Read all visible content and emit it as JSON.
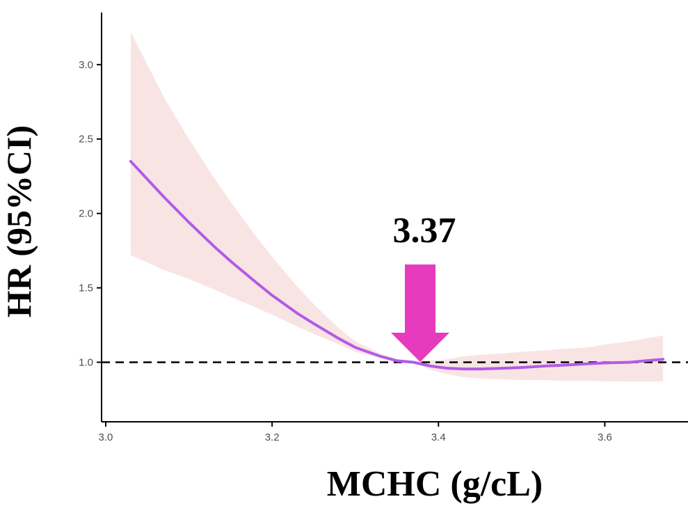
{
  "chart_data": {
    "type": "line",
    "title": "",
    "xlabel": "MCHC (g/cL)",
    "ylabel": "HR (95%CI)",
    "xlim": [
      2.995,
      3.7
    ],
    "ylim": [
      0.6,
      3.35
    ],
    "x_ticks": [
      3.0,
      3.2,
      3.4,
      3.6
    ],
    "x_tick_labels": [
      "3.0",
      "3.2",
      "3.4",
      "3.6"
    ],
    "y_ticks": [
      1.0,
      1.5,
      2.0,
      2.5,
      3.0
    ],
    "y_tick_labels": [
      "1.0",
      "1.5",
      "2.0",
      "2.5",
      "3.0"
    ],
    "grid": false,
    "reference_line": {
      "y": 1.0,
      "style": "dashed"
    },
    "annotation": {
      "text": "3.37",
      "x": 3.37
    },
    "series": [
      {
        "x": [
          3.03,
          3.05,
          3.07,
          3.1,
          3.13,
          3.15,
          3.18,
          3.2,
          3.23,
          3.25,
          3.28,
          3.3,
          3.33,
          3.35,
          3.37,
          3.39,
          3.41,
          3.43,
          3.45,
          3.48,
          3.5,
          3.53,
          3.55,
          3.58,
          3.6,
          3.63,
          3.65,
          3.67
        ],
        "y": [
          2.35,
          2.23,
          2.11,
          1.94,
          1.78,
          1.68,
          1.54,
          1.45,
          1.33,
          1.26,
          1.16,
          1.1,
          1.04,
          1.01,
          1.0,
          0.975,
          0.96,
          0.955,
          0.955,
          0.96,
          0.965,
          0.975,
          0.98,
          0.99,
          0.995,
          1.0,
          1.01,
          1.02
        ],
        "lower": [
          1.72,
          1.67,
          1.62,
          1.56,
          1.49,
          1.44,
          1.37,
          1.32,
          1.24,
          1.19,
          1.12,
          1.07,
          1.03,
          1.01,
          1.0,
          0.95,
          0.92,
          0.9,
          0.89,
          0.885,
          0.88,
          0.88,
          0.875,
          0.875,
          0.872,
          0.87,
          0.87,
          0.87
        ],
        "upper": [
          3.22,
          3.0,
          2.78,
          2.5,
          2.24,
          2.08,
          1.85,
          1.71,
          1.51,
          1.39,
          1.23,
          1.14,
          1.06,
          1.02,
          1.0,
          1.01,
          1.02,
          1.04,
          1.05,
          1.06,
          1.07,
          1.08,
          1.09,
          1.1,
          1.12,
          1.14,
          1.16,
          1.18
        ]
      }
    ],
    "colors": {
      "line": "#b35be6",
      "band": "#f9e4e4",
      "arrow": "#e63bbd",
      "reference": "#000000",
      "axis": "#000000",
      "tick_label": "#4d4d4d"
    }
  }
}
